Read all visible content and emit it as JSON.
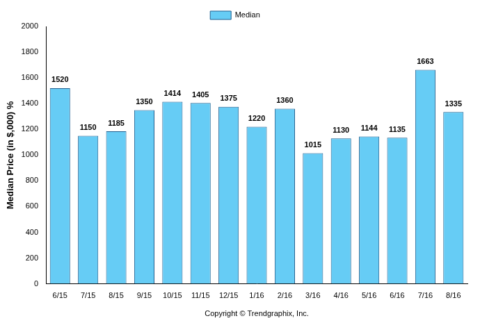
{
  "chart_data": {
    "type": "bar",
    "y_label": "Median Price (in $,000) %",
    "caption": "Copyright © Trendgraphix, Inc.",
    "categories": [
      "6/15",
      "7/15",
      "8/15",
      "9/15",
      "10/15",
      "11/15",
      "12/15",
      "1/16",
      "2/16",
      "3/16",
      "4/16",
      "5/16",
      "6/16",
      "7/16",
      "8/16"
    ],
    "series": [
      {
        "name": "Median",
        "color": "#66ccf5",
        "values": [
          1520,
          1150,
          1185,
          1350,
          1414,
          1405,
          1375,
          1220,
          1360,
          1015,
          1130,
          1144,
          1135,
          1663,
          1335
        ]
      }
    ],
    "ylim": [
      0,
      2000
    ],
    "yticks": [
      0,
      200,
      400,
      600,
      800,
      1000,
      1200,
      1400,
      1600,
      1800,
      2000
    ],
    "grid": false,
    "legend": "top",
    "data_labels": true
  }
}
